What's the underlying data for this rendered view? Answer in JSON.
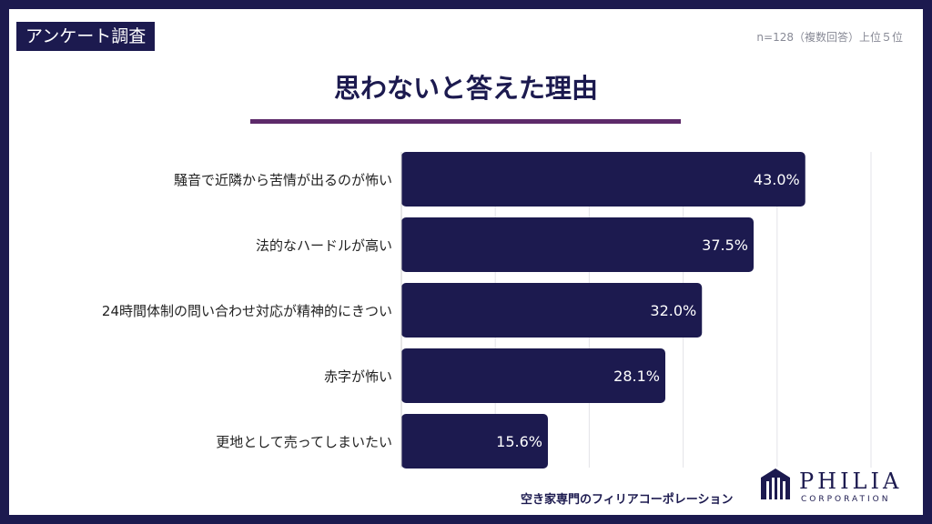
{
  "header": {
    "tag": "アンケート調査",
    "sample_note": "n=128（複数回答）上位５位"
  },
  "title": "思わないと答えた理由",
  "chart_data": {
    "type": "bar",
    "orientation": "horizontal",
    "categories": [
      "騒音で近隣から苦情が出るのが怖い",
      "法的なハードルが高い",
      "24時間体制の問い合わせ対応が精神的にきつい",
      "赤字が怖い",
      "更地として売ってしまいたい"
    ],
    "values": [
      43.0,
      37.5,
      32.0,
      28.1,
      15.6
    ],
    "value_labels": [
      "43.0%",
      "37.5%",
      "32.0%",
      "28.1%",
      "15.6%"
    ],
    "xlim": [
      0,
      50
    ],
    "grid": true,
    "bar_color": "#1c1a4f",
    "label_color": "#ffffff"
  },
  "footer": {
    "tagline": "空き家専門のフィリアコーポレーション",
    "brand": "PHILIA",
    "brand_sub": "CORPORATION"
  },
  "colors": {
    "navy": "#1c1a4f",
    "accent": "#5d2a6a",
    "grid": "#e3e3e8"
  }
}
